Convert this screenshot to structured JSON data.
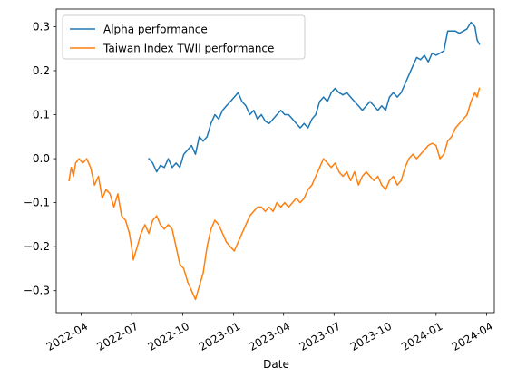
{
  "chart_data": {
    "type": "line",
    "xlabel": "Date",
    "ylabel": "",
    "x_is_date": true,
    "xlim": [
      "2022-02-15",
      "2024-04-15"
    ],
    "ylim": [
      -0.35,
      0.34
    ],
    "xticks": [
      "2022-04",
      "2022-07",
      "2022-10",
      "2023-01",
      "2023-04",
      "2023-07",
      "2023-10",
      "2024-01",
      "2024-04"
    ],
    "yticks": [
      -0.3,
      -0.2,
      -0.1,
      0.0,
      0.1,
      0.2,
      0.3
    ],
    "ytick_labels": [
      "−0.3",
      "−0.2",
      "−0.1",
      "0.0",
      "0.1",
      "0.2",
      "0.3"
    ],
    "grid": false,
    "legend_position": "top-left",
    "series": [
      {
        "name": "Alpha performance",
        "color": "#1f77b4",
        "points": [
          [
            "2022-08-01",
            0.0
          ],
          [
            "2022-08-08",
            -0.01
          ],
          [
            "2022-08-15",
            -0.03
          ],
          [
            "2022-08-22",
            -0.015
          ],
          [
            "2022-08-29",
            -0.02
          ],
          [
            "2022-09-05",
            0.0
          ],
          [
            "2022-09-12",
            -0.02
          ],
          [
            "2022-09-19",
            -0.01
          ],
          [
            "2022-09-26",
            -0.02
          ],
          [
            "2022-10-03",
            0.01
          ],
          [
            "2022-10-10",
            0.02
          ],
          [
            "2022-10-17",
            0.03
          ],
          [
            "2022-10-24",
            0.01
          ],
          [
            "2022-10-31",
            0.05
          ],
          [
            "2022-11-07",
            0.04
          ],
          [
            "2022-11-14",
            0.05
          ],
          [
            "2022-11-21",
            0.08
          ],
          [
            "2022-11-28",
            0.1
          ],
          [
            "2022-12-05",
            0.09
          ],
          [
            "2022-12-12",
            0.11
          ],
          [
            "2022-12-19",
            0.12
          ],
          [
            "2022-12-26",
            0.13
          ],
          [
            "2023-01-02",
            0.14
          ],
          [
            "2023-01-09",
            0.15
          ],
          [
            "2023-01-16",
            0.13
          ],
          [
            "2023-01-23",
            0.12
          ],
          [
            "2023-01-30",
            0.1
          ],
          [
            "2023-02-06",
            0.11
          ],
          [
            "2023-02-13",
            0.09
          ],
          [
            "2023-02-20",
            0.1
          ],
          [
            "2023-02-27",
            0.085
          ],
          [
            "2023-03-06",
            0.08
          ],
          [
            "2023-03-13",
            0.09
          ],
          [
            "2023-03-20",
            0.1
          ],
          [
            "2023-03-27",
            0.11
          ],
          [
            "2023-04-03",
            0.1
          ],
          [
            "2023-04-10",
            0.1
          ],
          [
            "2023-04-17",
            0.09
          ],
          [
            "2023-04-24",
            0.08
          ],
          [
            "2023-05-01",
            0.07
          ],
          [
            "2023-05-08",
            0.08
          ],
          [
            "2023-05-15",
            0.07
          ],
          [
            "2023-05-22",
            0.09
          ],
          [
            "2023-05-29",
            0.1
          ],
          [
            "2023-06-05",
            0.13
          ],
          [
            "2023-06-12",
            0.14
          ],
          [
            "2023-06-19",
            0.13
          ],
          [
            "2023-06-26",
            0.15
          ],
          [
            "2023-07-03",
            0.16
          ],
          [
            "2023-07-10",
            0.15
          ],
          [
            "2023-07-17",
            0.145
          ],
          [
            "2023-07-24",
            0.15
          ],
          [
            "2023-07-31",
            0.14
          ],
          [
            "2023-08-07",
            0.13
          ],
          [
            "2023-08-14",
            0.12
          ],
          [
            "2023-08-21",
            0.11
          ],
          [
            "2023-08-28",
            0.12
          ],
          [
            "2023-09-04",
            0.13
          ],
          [
            "2023-09-11",
            0.12
          ],
          [
            "2023-09-18",
            0.11
          ],
          [
            "2023-09-25",
            0.12
          ],
          [
            "2023-10-02",
            0.11
          ],
          [
            "2023-10-09",
            0.14
          ],
          [
            "2023-10-16",
            0.15
          ],
          [
            "2023-10-23",
            0.14
          ],
          [
            "2023-10-30",
            0.15
          ],
          [
            "2023-11-06",
            0.17
          ],
          [
            "2023-11-13",
            0.19
          ],
          [
            "2023-11-20",
            0.21
          ],
          [
            "2023-11-27",
            0.23
          ],
          [
            "2023-12-04",
            0.225
          ],
          [
            "2023-12-11",
            0.235
          ],
          [
            "2023-12-18",
            0.22
          ],
          [
            "2023-12-25",
            0.24
          ],
          [
            "2024-01-01",
            0.235
          ],
          [
            "2024-01-08",
            0.24
          ],
          [
            "2024-01-15",
            0.245
          ],
          [
            "2024-01-22",
            0.29
          ],
          [
            "2024-01-29",
            0.29
          ],
          [
            "2024-02-05",
            0.29
          ],
          [
            "2024-02-12",
            0.285
          ],
          [
            "2024-02-19",
            0.29
          ],
          [
            "2024-02-26",
            0.295
          ],
          [
            "2024-03-04",
            0.31
          ],
          [
            "2024-03-11",
            0.3
          ],
          [
            "2024-03-15",
            0.27
          ],
          [
            "2024-03-19",
            0.26
          ]
        ]
      },
      {
        "name": "Taiwan Index TWII performance",
        "color": "#ff7f0e",
        "points": [
          [
            "2022-03-10",
            -0.05
          ],
          [
            "2022-03-14",
            -0.02
          ],
          [
            "2022-03-18",
            -0.04
          ],
          [
            "2022-03-22",
            -0.01
          ],
          [
            "2022-03-28",
            0.0
          ],
          [
            "2022-04-04",
            -0.01
          ],
          [
            "2022-04-11",
            0.0
          ],
          [
            "2022-04-18",
            -0.02
          ],
          [
            "2022-04-25",
            -0.06
          ],
          [
            "2022-05-02",
            -0.04
          ],
          [
            "2022-05-09",
            -0.09
          ],
          [
            "2022-05-16",
            -0.07
          ],
          [
            "2022-05-23",
            -0.08
          ],
          [
            "2022-05-30",
            -0.11
          ],
          [
            "2022-06-06",
            -0.08
          ],
          [
            "2022-06-13",
            -0.13
          ],
          [
            "2022-06-20",
            -0.14
          ],
          [
            "2022-06-27",
            -0.17
          ],
          [
            "2022-07-01",
            -0.2
          ],
          [
            "2022-07-04",
            -0.23
          ],
          [
            "2022-07-11",
            -0.2
          ],
          [
            "2022-07-18",
            -0.17
          ],
          [
            "2022-07-25",
            -0.15
          ],
          [
            "2022-08-01",
            -0.17
          ],
          [
            "2022-08-08",
            -0.14
          ],
          [
            "2022-08-15",
            -0.13
          ],
          [
            "2022-08-22",
            -0.15
          ],
          [
            "2022-08-29",
            -0.16
          ],
          [
            "2022-09-05",
            -0.15
          ],
          [
            "2022-09-12",
            -0.16
          ],
          [
            "2022-09-19",
            -0.2
          ],
          [
            "2022-09-26",
            -0.24
          ],
          [
            "2022-10-03",
            -0.25
          ],
          [
            "2022-10-10",
            -0.28
          ],
          [
            "2022-10-17",
            -0.3
          ],
          [
            "2022-10-24",
            -0.32
          ],
          [
            "2022-10-31",
            -0.29
          ],
          [
            "2022-11-07",
            -0.26
          ],
          [
            "2022-11-14",
            -0.2
          ],
          [
            "2022-11-21",
            -0.16
          ],
          [
            "2022-11-28",
            -0.14
          ],
          [
            "2022-12-05",
            -0.15
          ],
          [
            "2022-12-12",
            -0.17
          ],
          [
            "2022-12-19",
            -0.19
          ],
          [
            "2022-12-26",
            -0.2
          ],
          [
            "2023-01-02",
            -0.21
          ],
          [
            "2023-01-09",
            -0.19
          ],
          [
            "2023-01-16",
            -0.17
          ],
          [
            "2023-01-23",
            -0.15
          ],
          [
            "2023-01-30",
            -0.13
          ],
          [
            "2023-02-06",
            -0.12
          ],
          [
            "2023-02-13",
            -0.11
          ],
          [
            "2023-02-20",
            -0.11
          ],
          [
            "2023-02-27",
            -0.12
          ],
          [
            "2023-03-06",
            -0.11
          ],
          [
            "2023-03-13",
            -0.12
          ],
          [
            "2023-03-20",
            -0.1
          ],
          [
            "2023-03-27",
            -0.11
          ],
          [
            "2023-04-03",
            -0.1
          ],
          [
            "2023-04-10",
            -0.11
          ],
          [
            "2023-04-17",
            -0.1
          ],
          [
            "2023-04-24",
            -0.09
          ],
          [
            "2023-05-01",
            -0.1
          ],
          [
            "2023-05-08",
            -0.09
          ],
          [
            "2023-05-15",
            -0.07
          ],
          [
            "2023-05-22",
            -0.06
          ],
          [
            "2023-05-29",
            -0.04
          ],
          [
            "2023-06-05",
            -0.02
          ],
          [
            "2023-06-12",
            0.0
          ],
          [
            "2023-06-19",
            -0.01
          ],
          [
            "2023-06-26",
            -0.02
          ],
          [
            "2023-07-03",
            -0.01
          ],
          [
            "2023-07-10",
            -0.03
          ],
          [
            "2023-07-17",
            -0.04
          ],
          [
            "2023-07-24",
            -0.03
          ],
          [
            "2023-07-31",
            -0.05
          ],
          [
            "2023-08-07",
            -0.03
          ],
          [
            "2023-08-14",
            -0.06
          ],
          [
            "2023-08-21",
            -0.04
          ],
          [
            "2023-08-28",
            -0.03
          ],
          [
            "2023-09-04",
            -0.04
          ],
          [
            "2023-09-11",
            -0.05
          ],
          [
            "2023-09-18",
            -0.04
          ],
          [
            "2023-09-25",
            -0.06
          ],
          [
            "2023-10-02",
            -0.07
          ],
          [
            "2023-10-09",
            -0.05
          ],
          [
            "2023-10-16",
            -0.04
          ],
          [
            "2023-10-23",
            -0.06
          ],
          [
            "2023-10-30",
            -0.05
          ],
          [
            "2023-11-06",
            -0.02
          ],
          [
            "2023-11-13",
            0.0
          ],
          [
            "2023-11-20",
            0.01
          ],
          [
            "2023-11-27",
            0.0
          ],
          [
            "2023-12-04",
            0.01
          ],
          [
            "2023-12-11",
            0.02
          ],
          [
            "2023-12-18",
            0.03
          ],
          [
            "2023-12-25",
            0.035
          ],
          [
            "2024-01-01",
            0.03
          ],
          [
            "2024-01-08",
            0.0
          ],
          [
            "2024-01-15",
            0.01
          ],
          [
            "2024-01-22",
            0.04
          ],
          [
            "2024-01-29",
            0.05
          ],
          [
            "2024-02-05",
            0.07
          ],
          [
            "2024-02-12",
            0.08
          ],
          [
            "2024-02-19",
            0.09
          ],
          [
            "2024-02-26",
            0.1
          ],
          [
            "2024-03-04",
            0.13
          ],
          [
            "2024-03-11",
            0.15
          ],
          [
            "2024-03-15",
            0.14
          ],
          [
            "2024-03-19",
            0.16
          ]
        ]
      }
    ]
  }
}
